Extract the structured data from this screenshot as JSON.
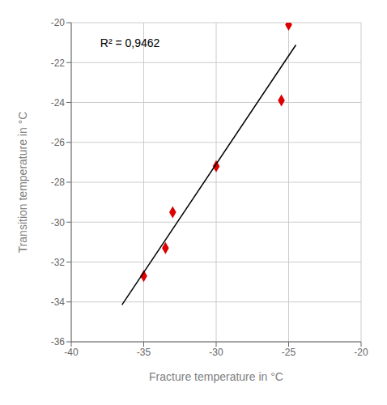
{
  "chart_data": {
    "type": "scatter",
    "xlabel": "Fracture temperature in °C",
    "ylabel": "Transition temperature in °C",
    "xlim": [
      -40,
      -20
    ],
    "ylim": [
      -36,
      -20
    ],
    "xticks": [
      -40,
      -35,
      -30,
      -25,
      -20
    ],
    "yticks": [
      -36,
      -34,
      -32,
      -30,
      -28,
      -26,
      -24,
      -22,
      -20
    ],
    "grid": true,
    "series": [
      {
        "type": "scatter",
        "color": "#dd0000",
        "marker": "diamond",
        "x": [
          -35,
          -33.5,
          -33,
          -30,
          -25.5,
          -25
        ],
        "values": [
          -32.7,
          -31.3,
          -29.5,
          -27.2,
          -23.9,
          -20.1
        ]
      },
      {
        "type": "line",
        "color": "#000000",
        "line_style": "solid",
        "x": [
          -36.5,
          -24.5
        ],
        "values": [
          -34.143945,
          -21.11789
        ]
      }
    ],
    "annotations": [
      {
        "text": "R² = 0,9462",
        "x": -38.0,
        "y": -20.8
      }
    ]
  }
}
